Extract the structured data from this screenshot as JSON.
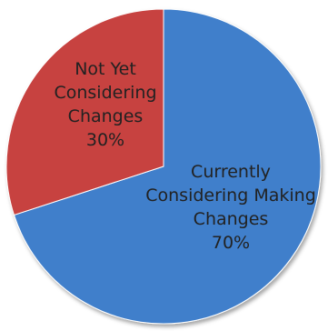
{
  "chart_data": {
    "type": "pie",
    "title": "",
    "slices": [
      {
        "label_lines": [
          "Currently",
          "Considering Making",
          "Changes"
        ],
        "value": 70,
        "value_label": "70%",
        "color": "#3f7fcb"
      },
      {
        "label_lines": [
          "Not Yet",
          "Considering",
          "Changes"
        ],
        "value": 30,
        "value_label": "30%",
        "color": "#c74240"
      }
    ],
    "start_angle_deg": 0,
    "direction": "clockwise",
    "legend": "none",
    "data_labels": "inside"
  }
}
